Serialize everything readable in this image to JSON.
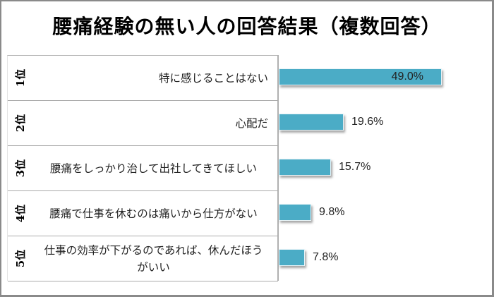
{
  "title": "腰痛経験の無い人の回答結果（複数回答）",
  "colors": {
    "bar": "#4bacc6",
    "frame": "#8a8a8a",
    "divider": "#aaaaaa"
  },
  "rows": [
    {
      "rank": "1位",
      "label": "特に感じることはない",
      "value": "49.0%"
    },
    {
      "rank": "2位",
      "label": "心配だ",
      "value": "19.6%"
    },
    {
      "rank": "3位",
      "label": "腰痛をしっかり治して出社してきてほしい",
      "value": "15.7%"
    },
    {
      "rank": "4位",
      "label": "腰痛で仕事を休むのは痛いから仕方がない",
      "value": "9.8%"
    },
    {
      "rank": "5位",
      "label": "仕事の効率が下がるのであれば、休んだほうがいい",
      "value": "7.8%"
    }
  ],
  "chart_data": {
    "type": "bar",
    "orientation": "horizontal",
    "title": "腰痛経験の無い人の回答結果（複数回答）",
    "categories": [
      "特に感じることはない",
      "心配だ",
      "腰痛をしっかり治して出社してきてほしい",
      "腰痛で仕事を休むのは痛いから仕方がない",
      "仕事の効率が下がるのであれば、休んだほうがいい"
    ],
    "ranks": [
      "1位",
      "2位",
      "3位",
      "4位",
      "5位"
    ],
    "values": [
      49.0,
      19.6,
      15.7,
      9.8,
      7.8
    ],
    "value_labels": [
      "49.0%",
      "19.6%",
      "15.7%",
      "9.8%",
      "7.8%"
    ],
    "unit": "%",
    "xlabel": "",
    "ylabel": "",
    "grid": false,
    "legend": null,
    "bar_color": "#4bacc6"
  }
}
